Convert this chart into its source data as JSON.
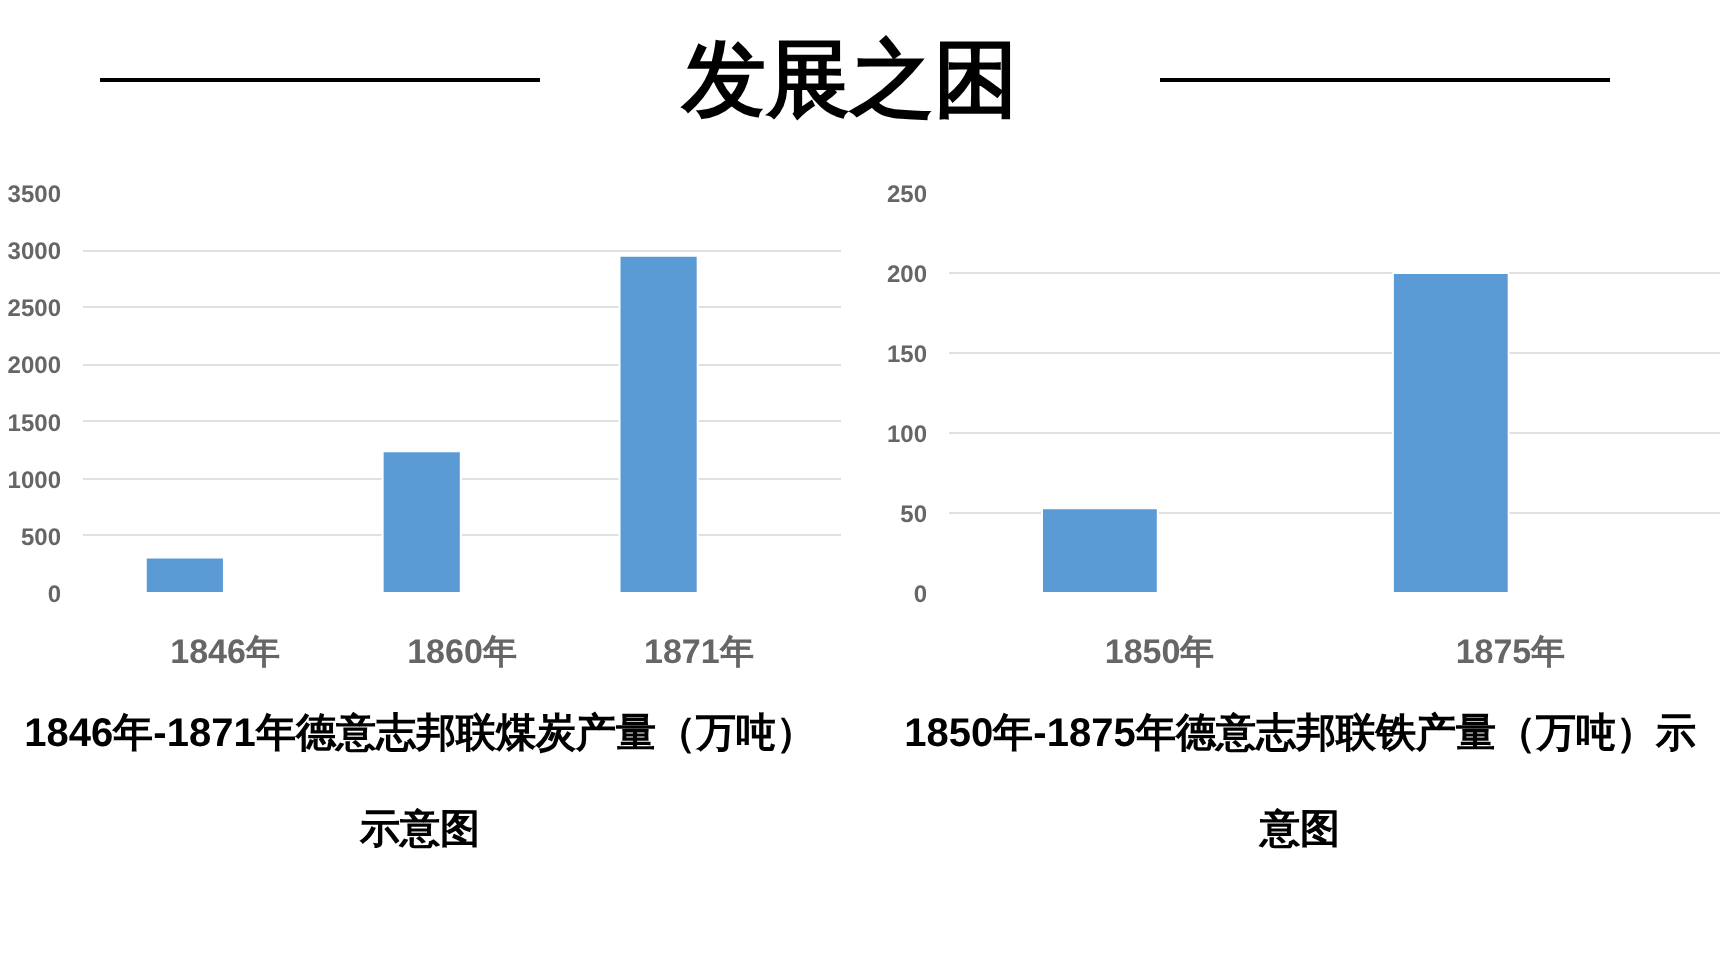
{
  "chart_data": [
    {
      "type": "bar",
      "title": "1846年-1871年德意志邦联煤炭产量（万吨）示意图",
      "annotations": [
        "发展之困"
      ],
      "categories": [
        "1846年",
        "1860年",
        "1871年"
      ],
      "values": [
        310,
        1240,
        2950
      ],
      "color": "#5b9bd5",
      "ylim": [
        0,
        3500
      ],
      "yticks": [
        0,
        500,
        1000,
        1500,
        2000,
        2500,
        3000,
        3500
      ],
      "grid": "y"
    },
    {
      "type": "bar",
      "title": "1850年-1875年德意志邦联铁产量（万吨）示意图",
      "categories": [
        "1850年",
        "1875年"
      ],
      "values": [
        53,
        200
      ],
      "color": "#5b9bd5",
      "ylim": [
        0,
        250
      ],
      "yticks": [
        0,
        50,
        100,
        150,
        200,
        250
      ],
      "grid": "y"
    }
  ]
}
